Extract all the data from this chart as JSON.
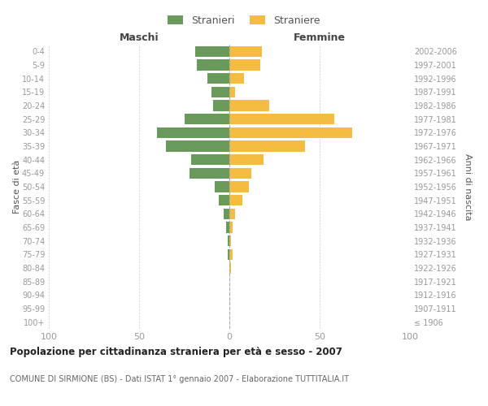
{
  "age_groups": [
    "100+",
    "95-99",
    "90-94",
    "85-89",
    "80-84",
    "75-79",
    "70-74",
    "65-69",
    "60-64",
    "55-59",
    "50-54",
    "45-49",
    "40-44",
    "35-39",
    "30-34",
    "25-29",
    "20-24",
    "15-19",
    "10-14",
    "5-9",
    "0-4"
  ],
  "birth_years": [
    "≤ 1906",
    "1907-1911",
    "1912-1916",
    "1917-1921",
    "1922-1926",
    "1927-1931",
    "1932-1936",
    "1937-1941",
    "1942-1946",
    "1947-1951",
    "1952-1956",
    "1957-1961",
    "1962-1966",
    "1967-1971",
    "1972-1976",
    "1977-1981",
    "1982-1986",
    "1987-1991",
    "1992-1996",
    "1997-2001",
    "2002-2006"
  ],
  "maschi": [
    0,
    0,
    0,
    0,
    0,
    1,
    1,
    2,
    3,
    6,
    8,
    22,
    21,
    35,
    40,
    25,
    9,
    10,
    12,
    18,
    19
  ],
  "femmine": [
    0,
    0,
    0,
    0,
    1,
    2,
    1,
    2,
    3,
    7,
    11,
    12,
    19,
    42,
    68,
    58,
    22,
    3,
    8,
    17,
    18
  ],
  "maschi_color": "#6a9a5b",
  "femmine_color": "#f5bc42",
  "title": "Popolazione per cittadinanza straniera per età e sesso - 2007",
  "subtitle": "COMUNE DI SIRMIONE (BS) - Dati ISTAT 1° gennaio 2007 - Elaborazione TUTTITALIA.IT",
  "xlabel_left": "Maschi",
  "xlabel_right": "Femmine",
  "ylabel_left": "Fasce di età",
  "ylabel_right": "Anni di nascita",
  "legend_stranieri": "Stranieri",
  "legend_straniere": "Straniere",
  "xlim": 100,
  "background_color": "#ffffff",
  "grid_color": "#d0d0d0",
  "text_color": "#999999",
  "label_color": "#555555"
}
